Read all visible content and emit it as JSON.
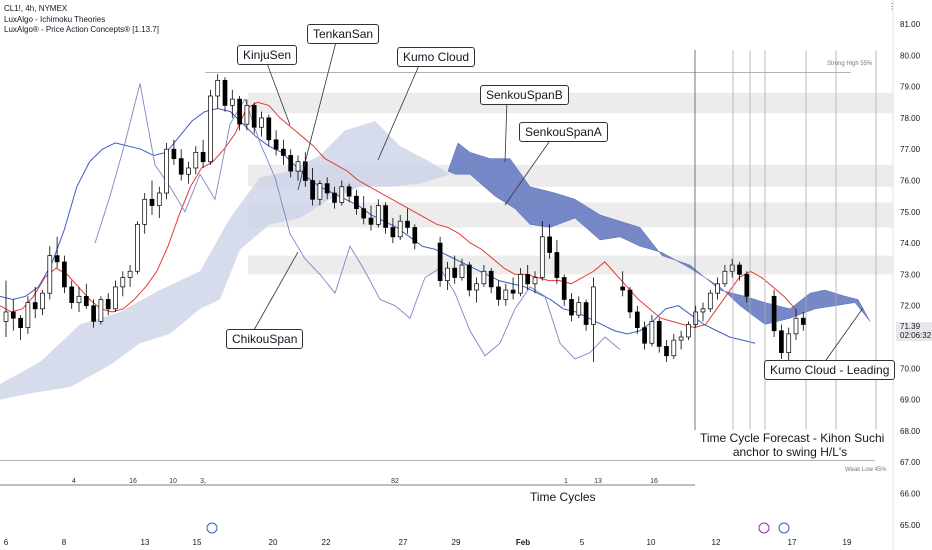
{
  "legend": {
    "symbol": "CL1!, 4h, NYMEX",
    "indicator_1": "LuxAlgo - Ichimoku Theories",
    "indicator_2": "LuxAlgo® - Price Action Concepts® [1.13.7]"
  },
  "callouts": {
    "kijun": "KinjuSen",
    "tenkan": "TenkanSan",
    "kumo": "Kumo Cloud",
    "span_b": "SenkouSpanB",
    "span_a": "SenkouSpanA",
    "chikou": "ChikouSpan",
    "kumo_leading": "Kumo Cloud - Leading"
  },
  "notes": {
    "forecast_line1": "Time Cycle Forecast - Kihon Suchi",
    "forecast_line2": "anchor to swing H/L's",
    "time_cycles": "Time Cycles",
    "strong_high": "Strong High 55%",
    "weak_low": "Weak Low 45%"
  },
  "price_tag": {
    "price": "71.39",
    "countdown": "02:06:32"
  },
  "colors": {
    "tenkan": "#e53935",
    "kijun": "#3b5fc0",
    "chikou": "#7a86c8",
    "kumo_past": "#cdd3e8",
    "kumo_future": "#6f82c4",
    "up_candle": "#ffffff",
    "down_candle": "#000000",
    "zones": "#ececec",
    "callout_line": "#333333"
  },
  "chart_data": {
    "type": "candlestick",
    "title": "CL1!, 4h, NYMEX",
    "ylim": [
      64.5,
      81.5
    ],
    "y_ticks": [
      "65.00",
      "66.00",
      "67.00",
      "68.00",
      "69.00",
      "70.00",
      "71.00",
      "72.00",
      "73.00",
      "74.00",
      "75.00",
      "76.00",
      "77.00",
      "78.00",
      "79.00",
      "80.00",
      "81.00"
    ],
    "x_ticks": [
      "6",
      "8",
      "13",
      "15",
      "20",
      "22",
      "27",
      "29",
      "Feb",
      "5",
      "10",
      "12",
      "17",
      "19"
    ],
    "last_price": 71.39,
    "strong_high": 79.45,
    "weak_low": 67.05,
    "resistance_zones": [
      [
        78.15,
        78.8
      ],
      [
        75.8,
        76.5
      ],
      [
        74.5,
        75.3
      ],
      [
        73.0,
        73.6
      ]
    ],
    "candles": [
      [
        71.5,
        72.8,
        71.0,
        71.8
      ],
      [
        71.8,
        72.2,
        71.2,
        71.6
      ],
      [
        71.6,
        71.7,
        70.9,
        71.3
      ],
      [
        71.3,
        72.3,
        71.1,
        72.1
      ],
      [
        72.1,
        72.6,
        71.6,
        71.9
      ],
      [
        71.9,
        72.5,
        71.7,
        72.4
      ],
      [
        72.4,
        73.9,
        72.2,
        73.6
      ],
      [
        73.6,
        74.2,
        73.2,
        73.4
      ],
      [
        73.4,
        73.6,
        72.4,
        72.6
      ],
      [
        72.6,
        72.8,
        71.9,
        72.1
      ],
      [
        72.1,
        72.6,
        71.8,
        72.3
      ],
      [
        72.3,
        72.7,
        71.9,
        72.0
      ],
      [
        72.0,
        72.2,
        71.3,
        71.5
      ],
      [
        71.5,
        72.3,
        71.4,
        72.2
      ],
      [
        72.2,
        72.4,
        71.7,
        71.9
      ],
      [
        71.9,
        72.8,
        71.8,
        72.6
      ],
      [
        72.6,
        73.1,
        72.3,
        72.9
      ],
      [
        72.9,
        73.3,
        72.6,
        73.1
      ],
      [
        73.1,
        74.7,
        73.0,
        74.6
      ],
      [
        74.6,
        75.6,
        74.3,
        75.4
      ],
      [
        75.4,
        76.0,
        74.9,
        75.2
      ],
      [
        75.2,
        75.8,
        74.8,
        75.6
      ],
      [
        75.6,
        77.2,
        75.4,
        77.0
      ],
      [
        77.0,
        77.3,
        76.5,
        76.7
      ],
      [
        76.7,
        77.0,
        76.0,
        76.2
      ],
      [
        76.2,
        76.6,
        75.9,
        76.4
      ],
      [
        76.4,
        77.1,
        76.2,
        76.9
      ],
      [
        76.9,
        77.3,
        76.4,
        76.6
      ],
      [
        76.6,
        78.9,
        76.5,
        78.7
      ],
      [
        78.7,
        79.4,
        78.3,
        79.2
      ],
      [
        79.2,
        79.3,
        78.2,
        78.4
      ],
      [
        78.4,
        78.9,
        78.0,
        78.6
      ],
      [
        78.6,
        78.7,
        77.6,
        77.8
      ],
      [
        77.8,
        78.6,
        77.6,
        78.4
      ],
      [
        78.4,
        78.5,
        77.5,
        77.7
      ],
      [
        77.7,
        78.2,
        77.4,
        78.0
      ],
      [
        78.0,
        78.1,
        77.1,
        77.3
      ],
      [
        77.3,
        77.6,
        76.8,
        77.0
      ],
      [
        77.0,
        77.3,
        76.5,
        76.8
      ],
      [
        76.8,
        77.0,
        76.1,
        76.3
      ],
      [
        76.3,
        76.8,
        76.0,
        76.6
      ],
      [
        76.6,
        76.9,
        75.8,
        76.0
      ],
      [
        76.0,
        76.4,
        75.2,
        75.4
      ],
      [
        75.4,
        76.0,
        75.2,
        75.9
      ],
      [
        75.9,
        76.1,
        75.4,
        75.6
      ],
      [
        75.6,
        75.8,
        75.1,
        75.3
      ],
      [
        75.3,
        76.0,
        75.2,
        75.8
      ],
      [
        75.8,
        75.9,
        75.3,
        75.5
      ],
      [
        75.5,
        75.7,
        74.9,
        75.1
      ],
      [
        75.1,
        75.5,
        74.6,
        74.8
      ],
      [
        74.8,
        75.2,
        74.4,
        74.6
      ],
      [
        74.6,
        75.4,
        74.5,
        75.2
      ],
      [
        75.2,
        75.3,
        74.3,
        74.5
      ],
      [
        74.5,
        74.8,
        74.0,
        74.2
      ],
      [
        74.2,
        74.9,
        74.1,
        74.7
      ],
      [
        74.7,
        75.1,
        74.3,
        74.5
      ],
      [
        74.5,
        74.6,
        73.8,
        74.0
      ],
      [
        74.0,
        74.2,
        72.6,
        72.8
      ],
      [
        72.8,
        73.4,
        72.5,
        73.2
      ],
      [
        73.2,
        73.6,
        72.7,
        72.9
      ],
      [
        72.9,
        73.5,
        72.8,
        73.3
      ],
      [
        73.3,
        73.4,
        72.3,
        72.5
      ],
      [
        72.5,
        72.9,
        72.1,
        72.7
      ],
      [
        72.7,
        73.3,
        72.6,
        73.1
      ],
      [
        73.1,
        73.2,
        72.4,
        72.6
      ],
      [
        72.6,
        72.8,
        72.0,
        72.2
      ],
      [
        72.2,
        72.7,
        72.0,
        72.5
      ],
      [
        72.5,
        72.9,
        72.2,
        72.4
      ],
      [
        72.4,
        73.2,
        72.3,
        73.0
      ],
      [
        73.0,
        73.3,
        72.5,
        72.7
      ],
      [
        72.7,
        73.1,
        72.4,
        72.9
      ],
      [
        72.9,
        74.7,
        72.8,
        74.2
      ],
      [
        74.2,
        74.6,
        73.5,
        73.7
      ],
      [
        73.7,
        74.1,
        72.7,
        72.9
      ],
      [
        72.9,
        73.0,
        72.0,
        72.2
      ],
      [
        72.2,
        72.4,
        71.5,
        71.7
      ],
      [
        71.7,
        72.3,
        71.6,
        72.1
      ],
      [
        72.1,
        72.2,
        71.2,
        71.4
      ],
      [
        71.4,
        72.9,
        70.2,
        72.6
      ],
      [
        72.6,
        73.1,
        72.3,
        72.5
      ],
      [
        72.5,
        72.6,
        71.6,
        71.8
      ],
      [
        71.8,
        72.0,
        71.1,
        71.3
      ],
      [
        71.3,
        71.5,
        70.6,
        70.8
      ],
      [
        70.8,
        71.7,
        70.7,
        71.5
      ],
      [
        71.5,
        71.6,
        70.5,
        70.7
      ],
      [
        70.7,
        70.9,
        70.2,
        70.4
      ],
      [
        70.4,
        71.1,
        70.3,
        70.9
      ],
      [
        70.9,
        71.2,
        70.6,
        71.0
      ],
      [
        71.0,
        71.5,
        70.9,
        71.4
      ],
      [
        71.4,
        72.0,
        71.3,
        71.8
      ],
      [
        71.8,
        72.1,
        71.5,
        71.9
      ],
      [
        71.9,
        72.5,
        71.8,
        72.4
      ],
      [
        72.4,
        72.9,
        72.2,
        72.7
      ],
      [
        72.7,
        73.3,
        72.6,
        73.1
      ],
      [
        73.1,
        73.5,
        72.9,
        73.3
      ],
      [
        73.3,
        73.4,
        72.8,
        73.0
      ],
      [
        73.0,
        73.1,
        72.1,
        72.3
      ],
      [
        72.3,
        72.5,
        71.0,
        71.2
      ],
      [
        71.2,
        71.4,
        70.3,
        70.5
      ],
      [
        70.5,
        71.3,
        70.2,
        71.1
      ],
      [
        71.1,
        71.9,
        70.9,
        71.6
      ],
      [
        71.6,
        71.8,
        71.2,
        71.4
      ]
    ],
    "tenkan": [
      72.0,
      71.8,
      71.9,
      72.3,
      72.9,
      73.2,
      73.0,
      72.6,
      72.2,
      71.9,
      71.8,
      71.9,
      72.2,
      72.6,
      73.1,
      73.9,
      74.9,
      75.8,
      76.4,
      76.6,
      77.0,
      77.5,
      78.3,
      78.5,
      78.4,
      78.0,
      77.7,
      77.4,
      77.1,
      76.7,
      76.5,
      76.3,
      76.0,
      75.8,
      75.6,
      75.4,
      75.2,
      75.0,
      74.8,
      74.6,
      74.5,
      74.3,
      74.0,
      73.8,
      73.5,
      73.2,
      73.0,
      73.0,
      72.9,
      72.8,
      72.8,
      72.7,
      72.9,
      73.1,
      73.4,
      73.0,
      72.6,
      72.2,
      71.9,
      71.6,
      71.5,
      71.4,
      71.3,
      71.4,
      71.9,
      72.4,
      72.9,
      73.1,
      72.9,
      72.6,
      72.3,
      71.9
    ],
    "kijun": [
      72.3,
      72.2,
      72.3,
      72.6,
      73.3,
      74.4,
      75.8,
      76.6,
      77.0,
      77.2,
      77.1,
      77.0,
      76.8,
      76.9,
      77.4,
      77.9,
      78.2,
      78.3,
      78.2,
      77.8,
      77.4,
      77.1,
      76.9,
      76.5,
      76.1,
      75.8,
      75.6,
      75.4,
      75.2,
      74.9,
      74.7,
      74.5,
      74.2,
      73.9,
      73.8,
      73.6,
      73.4,
      73.2,
      73.0,
      72.8,
      72.7,
      72.6,
      72.4,
      72.2,
      71.9,
      71.8,
      71.6,
      71.4,
      71.2,
      71.1,
      71.2,
      71.5,
      71.9,
      72.0,
      71.7,
      71.4,
      71.2,
      71.0,
      70.9,
      70.8
    ]
  }
}
